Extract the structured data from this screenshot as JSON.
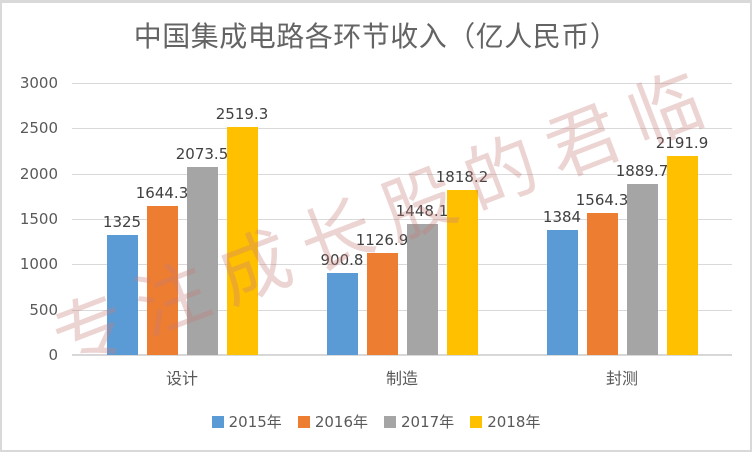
{
  "watermark": "专注成长股的君临",
  "chart_data": {
    "type": "bar",
    "title": "中国集成电路各环节收入（亿人民币）",
    "categories": [
      "设计",
      "制造",
      "封测"
    ],
    "series": [
      {
        "name": "2015年",
        "color": "#5B9BD5",
        "values": [
          1325,
          900.8,
          1384
        ]
      },
      {
        "name": "2016年",
        "color": "#ED7D31",
        "values": [
          1644.3,
          1126.9,
          1564.3
        ]
      },
      {
        "name": "2017年",
        "color": "#A5A5A5",
        "values": [
          2073.5,
          1448.1,
          1889.7
        ]
      },
      {
        "name": "2018年",
        "color": "#FFC000",
        "values": [
          2519.3,
          1818.2,
          2191.9
        ]
      }
    ],
    "data_labels": [
      [
        "1325",
        "1644.3",
        "2073.5",
        "2519.3"
      ],
      [
        "900.8",
        "1126.9",
        "1448.1",
        "1818.2"
      ],
      [
        "1384",
        "1564.3",
        "1889.7",
        "2191.9"
      ]
    ],
    "y_axis": {
      "min": 0,
      "max": 3000,
      "step": 500
    },
    "grid": true,
    "legend_position": "bottom",
    "grid_color": "#D9D9D9",
    "text_color": "#595959"
  }
}
